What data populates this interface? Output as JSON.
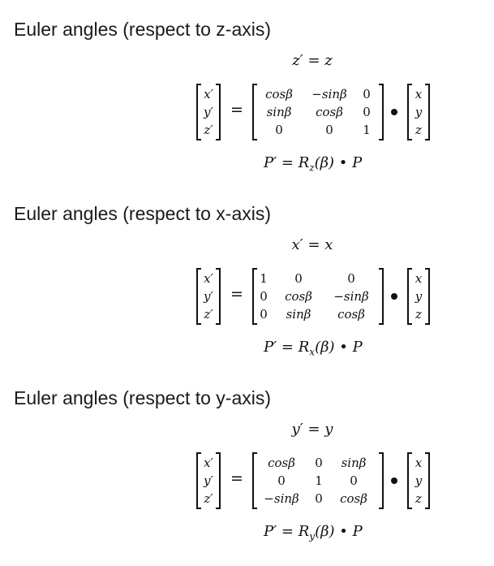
{
  "sections": [
    {
      "heading": "Euler angles (respect to z-axis)",
      "top_equation": "z′ = z",
      "lhs": [
        "x′",
        "y′",
        "z′"
      ],
      "equals": "=",
      "rotation_matrix": [
        [
          "cosβ",
          "−sinβ",
          "0"
        ],
        [
          "sinβ",
          "cosβ",
          "0"
        ],
        [
          "0",
          "0",
          "1"
        ]
      ],
      "rhs": [
        "x",
        "y",
        "z"
      ],
      "compact_formula": "P′ = Rz(β) • P",
      "subscript": "z"
    },
    {
      "heading": "Euler angles (respect to x-axis)",
      "top_equation": "x′ = x",
      "lhs": [
        "x′",
        "y′",
        "z′"
      ],
      "equals": "=",
      "rotation_matrix": [
        [
          "1",
          "0",
          "0"
        ],
        [
          "0",
          "cosβ",
          "−sinβ"
        ],
        [
          "0",
          "sinβ",
          "cosβ"
        ]
      ],
      "rhs": [
        "x",
        "y",
        "z"
      ],
      "compact_formula": "P′ = Rx(β) • P",
      "subscript": "x"
    },
    {
      "heading": "Euler angles (respect to y-axis)",
      "top_equation": "y′ = y",
      "lhs": [
        "x′",
        "y′",
        "z′"
      ],
      "equals": "=",
      "rotation_matrix": [
        [
          "cosβ",
          "0",
          "sinβ"
        ],
        [
          "0",
          "1",
          "0"
        ],
        [
          "−sinβ",
          "0",
          "cosβ"
        ]
      ],
      "rhs": [
        "x",
        "y",
        "z"
      ],
      "compact_formula": "P′ = Ry(β) • P",
      "subscript": "y"
    }
  ],
  "formula_parts": {
    "prefix": "P′ = R",
    "middle": "(β) • P"
  }
}
